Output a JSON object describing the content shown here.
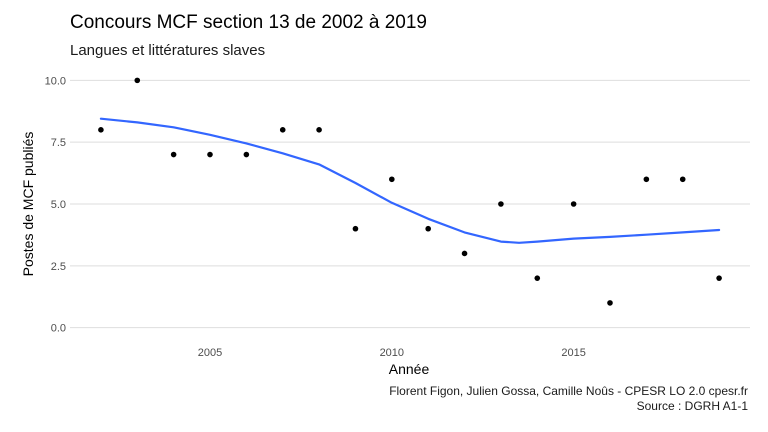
{
  "chart_data": {
    "type": "scatter",
    "title": "Concours MCF section 13 de 2002 à 2019",
    "subtitle": "Langues et littératures slaves",
    "xlabel": "Année",
    "ylabel": "Postes de MCF publiés",
    "xlim": [
      2001.15,
      2019.85
    ],
    "ylim": [
      -0.5,
      10.5
    ],
    "x_ticks": [
      2005,
      2010,
      2015
    ],
    "x_tick_labels": [
      "2005",
      "2010",
      "2015"
    ],
    "y_ticks": [
      0,
      2.5,
      5,
      7.5,
      10
    ],
    "y_tick_labels": [
      "0.0",
      "2.5",
      "5.0",
      "7.5",
      "10.0"
    ],
    "grid": "horizontal",
    "points": {
      "x": [
        2002,
        2003,
        2004,
        2005,
        2006,
        2007,
        2008,
        2009,
        2010,
        2011,
        2012,
        2013,
        2014,
        2015,
        2016,
        2017,
        2018,
        2019
      ],
      "y": [
        8,
        10,
        7,
        7,
        7,
        8,
        8,
        4,
        6,
        4,
        3,
        5,
        2,
        5,
        1,
        6,
        6,
        2
      ],
      "color": "#000000"
    },
    "smooth": {
      "x": [
        2002,
        2003,
        2004,
        2005,
        2006,
        2007,
        2008,
        2009,
        2010,
        2011,
        2012,
        2013,
        2013.5,
        2014,
        2015,
        2016,
        2017,
        2018,
        2019
      ],
      "y": [
        8.45,
        8.3,
        8.1,
        7.8,
        7.45,
        7.05,
        6.6,
        5.85,
        5.05,
        4.4,
        3.85,
        3.48,
        3.43,
        3.48,
        3.6,
        3.67,
        3.76,
        3.85,
        3.95
      ],
      "color": "#3366ff"
    }
  },
  "caption": {
    "line1": "Florent Figon, Julien Gossa, Camille Noûs - CPESR LO 2.0 cpesr.fr",
    "line2": "Source : DGRH A1-1"
  }
}
